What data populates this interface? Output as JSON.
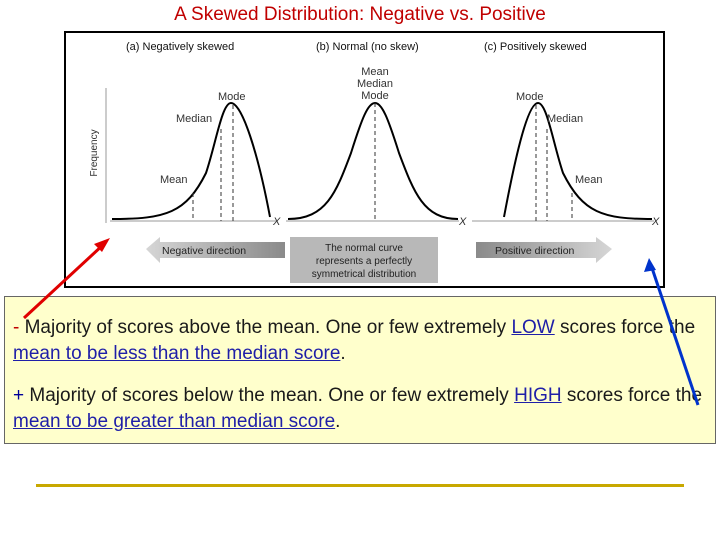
{
  "title": "A Skewed Distribution: Negative vs. Positive",
  "figure": {
    "panel_a": {
      "heading": "(a) Negatively skewed",
      "mode": "Mode",
      "median": "Median",
      "mean": "Mean"
    },
    "panel_b": {
      "heading": "(b) Normal (no skew)",
      "mean": "Mean",
      "median": "Median",
      "mode": "Mode"
    },
    "panel_c": {
      "heading": "(c) Positively skewed",
      "mode": "Mode",
      "median": "Median",
      "mean": "Mean"
    },
    "y_axis_label": "Frequency",
    "x_marker": "X",
    "negative_direction": "Negative direction",
    "normal_note_line1": "The normal curve",
    "normal_note_line2": "represents a perfectly",
    "normal_note_line3": "symmetrical distribution",
    "positive_direction": "Positive direction"
  },
  "explanation": {
    "negative": {
      "sign": "-",
      "text_before": " Majority of scores above the mean. One or few extremely ",
      "keyword": "LOW",
      "text_middle": " scores force the ",
      "underlined": "mean to be less than the median score",
      "text_end": "."
    },
    "positive": {
      "sign": "+",
      "text_before": " Majority of scores below the mean. One or few extremely ",
      "keyword": "HIGH",
      "text_middle": " scores force the ",
      "underlined": "mean to be greater than median score",
      "text_end": "."
    }
  },
  "colors": {
    "title": "#c00000",
    "negative_arrow": "#e00000",
    "positive_arrow": "#0033cc",
    "box_background": "#ffffcc",
    "divider": "#c8a800"
  }
}
